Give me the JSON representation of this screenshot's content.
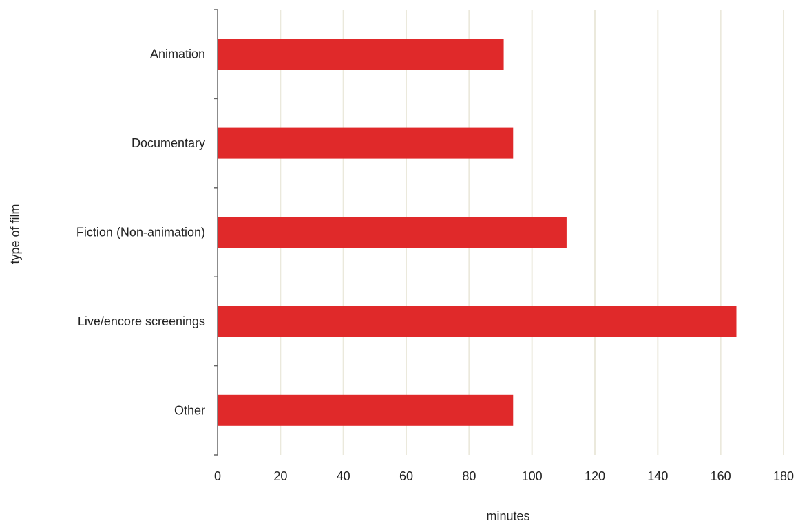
{
  "chart_data": {
    "type": "bar",
    "orientation": "horizontal",
    "categories": [
      "Animation",
      "Documentary",
      "Fiction (Non-animation)",
      "Live/encore screenings",
      "Other"
    ],
    "values": [
      91,
      94,
      111,
      165,
      94
    ],
    "xlabel": "minutes",
    "ylabel": "type of film",
    "xlim": [
      0,
      180
    ],
    "xticks": [
      "0",
      "20",
      "40",
      "60",
      "80",
      "100",
      "120",
      "140",
      "160",
      "180"
    ],
    "grid": "vertical",
    "legend": "none"
  },
  "colors": {
    "bar": "#e0292a",
    "grid": "#ebe9dc",
    "axis": "#666666",
    "text": "#222222"
  }
}
